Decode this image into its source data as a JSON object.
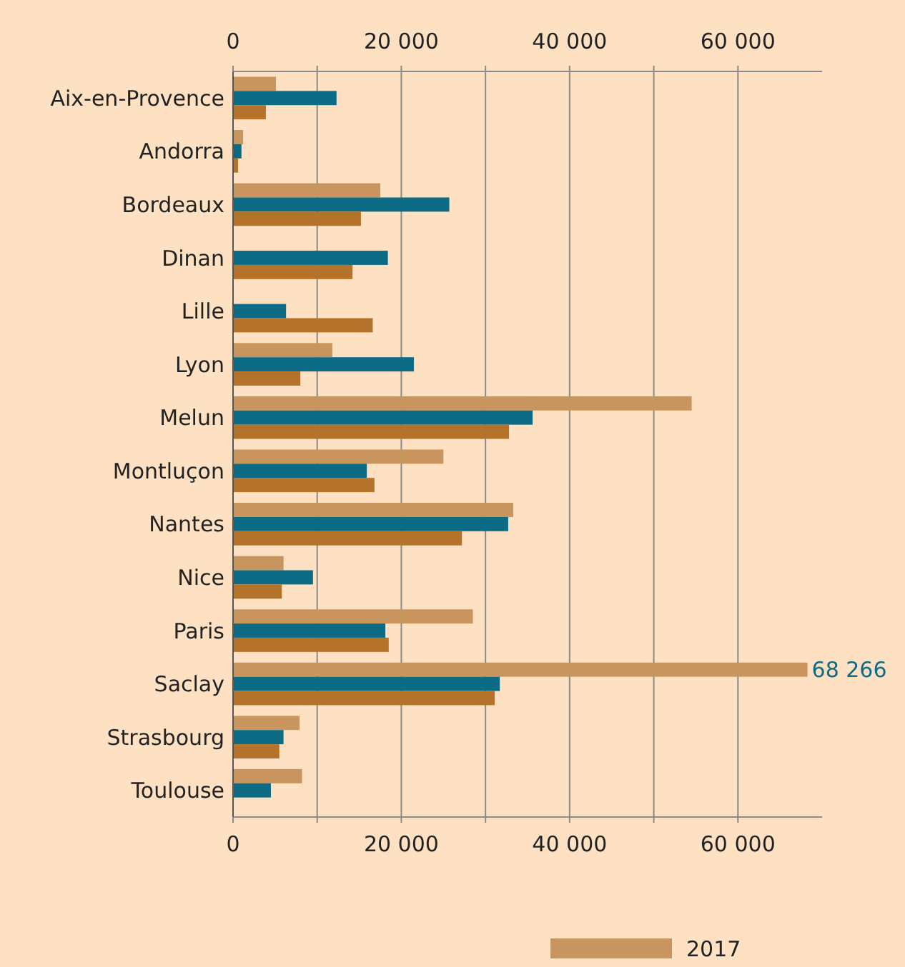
{
  "chart_data": {
    "type": "bar",
    "orientation": "horizontal",
    "categories": [
      "Aix-en-Provence",
      "Andorra",
      "Bordeaux",
      "Dinan",
      "Lille",
      "Lyon",
      "Melun",
      "Montluçon",
      "Nantes",
      "Nice",
      "Paris",
      "Saclay",
      "Strasbourg",
      "Toulouse"
    ],
    "series": [
      {
        "name": "2017",
        "color": "#c8955e",
        "values": [
          5100,
          1200,
          17500,
          null,
          null,
          11800,
          54500,
          25000,
          33300,
          6000,
          28500,
          68266,
          7900,
          8200
        ],
        "value_labels": [
          null,
          null,
          null,
          null,
          null,
          null,
          null,
          null,
          null,
          null,
          null,
          "68 266",
          null,
          null
        ]
      },
      {
        "color": "#0e6b86",
        "values": [
          12300,
          1000,
          25700,
          18400,
          6300,
          21500,
          35600,
          15900,
          32700,
          9500,
          18100,
          31700,
          6000,
          4500
        ]
      },
      {
        "color": "#b5722a",
        "values": [
          3900,
          600,
          15200,
          14200,
          16600,
          8000,
          32800,
          16800,
          27200,
          5800,
          18500,
          31100,
          5500,
          null
        ]
      }
    ],
    "xlim": [
      0,
      70000
    ],
    "xticks": [
      0,
      {
        "value": 10000,
        "label": null
      },
      {
        "value": 20000,
        "label": "20 000"
      },
      {
        "value": 30000,
        "label": null
      },
      {
        "value": 40000,
        "label": "40 000"
      },
      {
        "value": 50000,
        "label": null
      },
      {
        "value": 60000,
        "label": "60 000"
      }
    ],
    "x2lim": [
      0,
      70000
    ],
    "x2ticks": [
      0,
      {
        "value": 10000,
        "label": null
      },
      {
        "value": 20000,
        "label": "20 000"
      },
      {
        "value": 30000,
        "label": null
      },
      {
        "value": 40000,
        "label": "40 000"
      },
      {
        "value": 50000,
        "label": null
      },
      {
        "value": 60000,
        "label": "60 000"
      }
    ],
    "grid": "x",
    "legend": "bottom"
  }
}
